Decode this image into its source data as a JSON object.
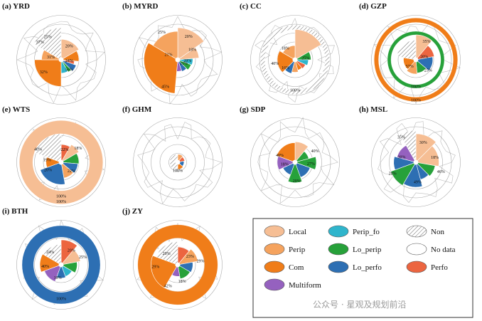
{
  "colors": {
    "Local": "#f6be94",
    "Perip": "#f5a35e",
    "Com": "#f07d19",
    "Perfo": "#ec6540",
    "Perip_fo": "#2fb5cc",
    "Lo_perip": "#27a13a",
    "Lo_perfo": "#2d6fb3",
    "Multiform": "#9561bf",
    "Non": "#ffffff",
    "No data": "#ffffff",
    "ring": "#aaaaaa",
    "map": "#bdbdbd"
  },
  "legend": {
    "items": [
      {
        "key": "Local",
        "label": "Local"
      },
      {
        "key": "Perip_fo",
        "label": "Perip_fo"
      },
      {
        "key": "Non",
        "label": "Non"
      },
      {
        "key": "Perip",
        "label": "Perip"
      },
      {
        "key": "Lo_perip",
        "label": "Lo_perip"
      },
      {
        "key": "No data",
        "label": "No data"
      },
      {
        "key": "Com",
        "label": "Com"
      },
      {
        "key": "Lo_perfo",
        "label": "Lo_perfo"
      },
      {
        "key": "Perfo",
        "label": "Perfo"
      },
      {
        "key": "Multiform",
        "label": "Multiform"
      }
    ]
  },
  "watermark": "公众号 · 星观及规划前沿",
  "chart_data": [
    {
      "title": "(a) YRD",
      "type": "radial-bar",
      "rings": 5,
      "sectors": [
        {
          "start": 0,
          "end": 60,
          "outer": 2.3,
          "cat": "Local"
        },
        {
          "start": 60,
          "end": 95,
          "outer": 2.0,
          "cat": "Com"
        },
        {
          "start": 95,
          "end": 110,
          "outer": 1.5,
          "cat": "Perfo"
        },
        {
          "start": 110,
          "end": 135,
          "outer": 1.8,
          "cat": "Lo_perfo"
        },
        {
          "start": 135,
          "end": 150,
          "outer": 1.6,
          "cat": "Lo_perip"
        },
        {
          "start": 150,
          "end": 180,
          "outer": 1.5,
          "cat": "Perip_fo"
        },
        {
          "start": 180,
          "end": 270,
          "outer": 3.0,
          "cat": "Com"
        },
        {
          "start": 270,
          "end": 300,
          "outer": 2.2,
          "cat": "Perip"
        },
        {
          "start": 300,
          "end": 360,
          "outer": 3.6,
          "cat": "Non"
        }
      ],
      "labels": [
        {
          "text": "20%",
          "angle": 30,
          "r": 1.8
        },
        {
          "text": "24%",
          "angle": 95,
          "r": 0.9
        },
        {
          "text": "56%",
          "angle": 140,
          "r": 1.4
        },
        {
          "text": "32%",
          "angle": 235,
          "r": 2.4
        },
        {
          "text": "31%",
          "angle": 285,
          "r": 1.2
        },
        {
          "text": "37%",
          "angle": 310,
          "r": 3.1
        },
        {
          "text": "25%",
          "angle": 330,
          "r": 3.0
        }
      ]
    },
    {
      "title": "(b) MYRD",
      "type": "radial-bar",
      "rings": 5,
      "sectors": [
        {
          "start": 0,
          "end": 55,
          "outer": 3.6,
          "cat": "Local"
        },
        {
          "start": 55,
          "end": 85,
          "outer": 2.4,
          "cat": "Local"
        },
        {
          "start": 85,
          "end": 110,
          "outer": 1.7,
          "cat": "Perip_fo"
        },
        {
          "start": 110,
          "end": 135,
          "outer": 1.6,
          "cat": "Lo_perip"
        },
        {
          "start": 135,
          "end": 160,
          "outer": 1.4,
          "cat": "Lo_perfo"
        },
        {
          "start": 160,
          "end": 185,
          "outer": 1.3,
          "cat": "Multiform"
        },
        {
          "start": 185,
          "end": 300,
          "outer": 3.8,
          "cat": "Com"
        },
        {
          "start": 300,
          "end": 360,
          "outer": 3.2,
          "cat": "Perip"
        }
      ],
      "labels": [
        {
          "text": "20%",
          "angle": 25,
          "r": 2.9
        },
        {
          "text": "18%",
          "angle": 55,
          "r": 2.0
        },
        {
          "text": "29%",
          "angle": 95,
          "r": 1.1
        },
        {
          "text": "11%",
          "angle": 120,
          "r": 0.8
        },
        {
          "text": "45%",
          "angle": 205,
          "r": 3.3
        },
        {
          "text": "21%",
          "angle": 300,
          "r": 1.2
        },
        {
          "text": "25%",
          "angle": 330,
          "r": 3.6
        }
      ]
    },
    {
      "title": "(c) CC",
      "type": "radial-bar",
      "rings": 5,
      "sectors": [
        {
          "start": 0,
          "end": 60,
          "outer": 3.4,
          "cat": "Local"
        },
        {
          "start": 60,
          "end": 90,
          "outer": 1.8,
          "cat": "Lo_perip"
        },
        {
          "start": 90,
          "end": 115,
          "outer": 1.5,
          "cat": "Perip_fo"
        },
        {
          "start": 115,
          "end": 140,
          "outer": 1.3,
          "cat": "Perfo"
        },
        {
          "start": 140,
          "end": 165,
          "outer": 1.2,
          "cat": "Com"
        },
        {
          "start": 165,
          "end": 195,
          "outer": 1.4,
          "cat": "Perip"
        },
        {
          "start": 195,
          "end": 225,
          "outer": 1.6,
          "cat": "Lo_perfo"
        },
        {
          "start": 225,
          "end": 300,
          "outer": 2.0,
          "cat": "Com"
        },
        {
          "start": 300,
          "end": 360,
          "outer": 1.6,
          "cat": "Perip"
        }
      ],
      "ring": {
        "cat": "Non",
        "inner": 3.4,
        "outer": 3.9,
        "start": 0,
        "end": 360
      },
      "labels": [
        {
          "text": "25%",
          "angle": 80,
          "r": 1.2
        },
        {
          "text": "100%",
          "angle": 180,
          "r": 3.4
        },
        {
          "text": "40%",
          "angle": 260,
          "r": 2.3
        },
        {
          "text": "16%",
          "angle": 230,
          "r": 1.4
        },
        {
          "text": "18%",
          "angle": 320,
          "r": 1.7
        }
      ]
    },
    {
      "title": "(d) GZP",
      "type": "radial-bar",
      "rings": 5,
      "sectors": [
        {
          "start": 0,
          "end": 40,
          "outer": 2.8,
          "cat": "Local"
        },
        {
          "start": 40,
          "end": 80,
          "outer": 2.1,
          "cat": "Perfo"
        },
        {
          "start": 80,
          "end": 130,
          "outer": 1.9,
          "cat": "Lo_perfo"
        },
        {
          "start": 130,
          "end": 175,
          "outer": 1.5,
          "cat": "Lo_perip"
        },
        {
          "start": 175,
          "end": 220,
          "outer": 1.6,
          "cat": "Perip"
        },
        {
          "start": 220,
          "end": 280,
          "outer": 1.4,
          "cat": "Com"
        },
        {
          "start": 280,
          "end": 360,
          "outer": 2.2,
          "cat": "Non"
        }
      ],
      "ring": {
        "cat": "Com",
        "inner": 4.2,
        "outer": 4.7,
        "start": 0,
        "end": 360
      },
      "ring2": {
        "cat": "Lo_perip",
        "inner": 2.8,
        "outer": 3.2,
        "start": 0,
        "end": 360
      },
      "labels": [
        {
          "text": "35%",
          "angle": 30,
          "r": 2.4
        },
        {
          "text": "20%",
          "angle": 70,
          "r": 1.0
        },
        {
          "text": "25%",
          "angle": 130,
          "r": 1.8
        },
        {
          "text": "57%",
          "angle": 225,
          "r": 1.0
        },
        {
          "text": "100%",
          "angle": 180,
          "r": 3.0
        },
        {
          "text": "100%",
          "angle": 180,
          "r": 4.5
        }
      ]
    },
    {
      "title": "(e) WTS",
      "type": "radial-bar",
      "rings": 5,
      "sectors": [
        {
          "start": 0,
          "end": 30,
          "outer": 2.0,
          "cat": "Perfo"
        },
        {
          "start": 30,
          "end": 60,
          "outer": 2.3,
          "cat": "Local"
        },
        {
          "start": 60,
          "end": 95,
          "outer": 2.0,
          "cat": "Lo_perip"
        },
        {
          "start": 95,
          "end": 130,
          "outer": 1.9,
          "cat": "Lo_perfo"
        },
        {
          "start": 130,
          "end": 170,
          "outer": 1.8,
          "cat": "Perip"
        },
        {
          "start": 170,
          "end": 250,
          "outer": 2.5,
          "cat": "Lo_perfo"
        },
        {
          "start": 250,
          "end": 290,
          "outer": 1.7,
          "cat": "Com"
        },
        {
          "start": 290,
          "end": 360,
          "outer": 3.2,
          "cat": "Non"
        }
      ],
      "ring": {
        "cat": "Local",
        "inner": 3.2,
        "outer": 4.7,
        "start": 0,
        "end": 360
      },
      "labels": [
        {
          "text": "22%",
          "angle": 15,
          "r": 1.5
        },
        {
          "text": "18%",
          "angle": 50,
          "r": 2.5
        },
        {
          "text": "22%",
          "angle": 130,
          "r": 1.5
        },
        {
          "text": "100%",
          "angle": 180,
          "r": 3.8
        },
        {
          "text": "100%",
          "angle": 180,
          "r": 4.4
        },
        {
          "text": "20%",
          "angle": 240,
          "r": 1.7
        },
        {
          "text": "40%",
          "angle": 300,
          "r": 3.0
        },
        {
          "text": "19%",
          "angle": 280,
          "r": 1.6
        }
      ]
    },
    {
      "title": "(f) GHM",
      "type": "radial-bar",
      "rings": 5,
      "sectors": [
        {
          "start": 0,
          "end": 40,
          "outer": 0.9,
          "cat": "Perip"
        },
        {
          "start": 40,
          "end": 80,
          "outer": 0.8,
          "cat": "Perfo"
        },
        {
          "start": 80,
          "end": 130,
          "outer": 0.7,
          "cat": "Lo_perfo"
        },
        {
          "start": 130,
          "end": 180,
          "outer": 0.8,
          "cat": "Com"
        },
        {
          "start": 180,
          "end": 360,
          "outer": 0.9,
          "cat": "Non"
        }
      ],
      "labels": [
        {
          "text": "100%",
          "angle": 180,
          "r": 0.9
        }
      ]
    },
    {
      "title": "(g) SDP",
      "type": "radial-bar",
      "rings": 5,
      "sectors": [
        {
          "start": 0,
          "end": 40,
          "outer": 2.3,
          "cat": "Local"
        },
        {
          "start": 40,
          "end": 75,
          "outer": 1.6,
          "cat": "Lo_perip"
        },
        {
          "start": 75,
          "end": 110,
          "outer": 2.4,
          "cat": "Lo_perip"
        },
        {
          "start": 110,
          "end": 160,
          "outer": 1.8,
          "cat": "Lo_perfo"
        },
        {
          "start": 160,
          "end": 200,
          "outer": 2.3,
          "cat": "Lo_perip"
        },
        {
          "start": 200,
          "end": 245,
          "outer": 1.5,
          "cat": "Lo_perfo"
        },
        {
          "start": 245,
          "end": 290,
          "outer": 2.0,
          "cat": "Multiform"
        },
        {
          "start": 290,
          "end": 360,
          "outer": 2.2,
          "cat": "Com"
        }
      ],
      "labels": [
        {
          "text": "40%",
          "angle": 60,
          "r": 2.6
        },
        {
          "text": "27%",
          "angle": 95,
          "r": 1.8
        },
        {
          "text": "20%",
          "angle": 175,
          "r": 2.1
        },
        {
          "text": "40%",
          "angle": 295,
          "r": 1.9
        },
        {
          "text": "18%",
          "angle": 260,
          "r": 1.2
        }
      ]
    },
    {
      "title": "(h) MSL",
      "type": "radial-bar",
      "rings": 5,
      "sectors": [
        {
          "start": 0,
          "end": 45,
          "outer": 3.2,
          "cat": "Local"
        },
        {
          "start": 45,
          "end": 100,
          "outer": 2.6,
          "cat": "Local"
        },
        {
          "start": 100,
          "end": 135,
          "outer": 2.2,
          "cat": "Lo_perip"
        },
        {
          "start": 135,
          "end": 165,
          "outer": 2.0,
          "cat": "Lo_perfo"
        },
        {
          "start": 165,
          "end": 210,
          "outer": 2.8,
          "cat": "Lo_perfo"
        },
        {
          "start": 210,
          "end": 250,
          "outer": 3.0,
          "cat": "Lo_perip"
        },
        {
          "start": 250,
          "end": 285,
          "outer": 2.5,
          "cat": "Lo_perfo"
        },
        {
          "start": 285,
          "end": 330,
          "outer": 2.2,
          "cat": "Multiform"
        },
        {
          "start": 330,
          "end": 360,
          "outer": 3.6,
          "cat": "Non"
        }
      ],
      "labels": [
        {
          "text": "30%",
          "angle": 20,
          "r": 2.4
        },
        {
          "text": "18%",
          "angle": 75,
          "r": 2.2
        },
        {
          "text": "46%",
          "angle": 110,
          "r": 3.0
        },
        {
          "text": "49%",
          "angle": 175,
          "r": 2.2
        },
        {
          "text": "20%",
          "angle": 245,
          "r": 2.9
        },
        {
          "text": "30%",
          "angle": 290,
          "r": 1.7
        },
        {
          "text": "35%",
          "angle": 330,
          "r": 3.3
        }
      ]
    },
    {
      "title": "(i) BTH",
      "type": "radial-bar",
      "rings": 5,
      "sectors": [
        {
          "start": 0,
          "end": 40,
          "outer": 2.8,
          "cat": "Perfo"
        },
        {
          "start": 40,
          "end": 80,
          "outer": 2.2,
          "cat": "Local"
        },
        {
          "start": 80,
          "end": 120,
          "outer": 1.8,
          "cat": "Lo_perip"
        },
        {
          "start": 120,
          "end": 160,
          "outer": 1.4,
          "cat": "Perip_fo"
        },
        {
          "start": 160,
          "end": 200,
          "outer": 1.5,
          "cat": "Lo_perfo"
        },
        {
          "start": 200,
          "end": 250,
          "outer": 2.0,
          "cat": "Multiform"
        },
        {
          "start": 250,
          "end": 300,
          "outer": 2.4,
          "cat": "Com"
        },
        {
          "start": 300,
          "end": 360,
          "outer": 2.3,
          "cat": "Non"
        }
      ],
      "ring": {
        "cat": "Lo_perfo",
        "inner": 3.1,
        "outer": 4.4,
        "start": 0,
        "end": 360
      },
      "labels": [
        {
          "text": "20%",
          "angle": 35,
          "r": 2.0
        },
        {
          "text": "25%",
          "angle": 70,
          "r": 2.6
        },
        {
          "text": "18%",
          "angle": 195,
          "r": 1.5
        },
        {
          "text": "100%",
          "angle": 180,
          "r": 3.8
        },
        {
          "text": "40%",
          "angle": 265,
          "r": 1.8
        },
        {
          "text": "24%",
          "angle": 320,
          "r": 1.9
        }
      ]
    },
    {
      "title": "(j) ZY",
      "type": "radial-bar",
      "rings": 5,
      "sectors": [
        {
          "start": 0,
          "end": 40,
          "outer": 2.0,
          "cat": "Perfo"
        },
        {
          "start": 40,
          "end": 80,
          "outer": 2.3,
          "cat": "Perip"
        },
        {
          "start": 80,
          "end": 120,
          "outer": 1.7,
          "cat": "Lo_perfo"
        },
        {
          "start": 120,
          "end": 170,
          "outer": 1.6,
          "cat": "Lo_perip"
        },
        {
          "start": 170,
          "end": 210,
          "outer": 1.3,
          "cat": "Multiform"
        },
        {
          "start": 210,
          "end": 290,
          "outer": 3.0,
          "cat": "Com"
        },
        {
          "start": 290,
          "end": 360,
          "outer": 2.6,
          "cat": "Non"
        }
      ],
      "ring": {
        "cat": "Com",
        "inner": 3.0,
        "outer": 4.5,
        "start": 0,
        "end": 360
      },
      "labels": [
        {
          "text": "23%",
          "angle": 55,
          "r": 1.7
        },
        {
          "text": "29%",
          "angle": 80,
          "r": 2.6
        },
        {
          "text": "18%",
          "angle": 165,
          "r": 1.9
        },
        {
          "text": "42%",
          "angle": 205,
          "r": 2.6
        },
        {
          "text": "29%",
          "angle": 265,
          "r": 2.5
        },
        {
          "text": "20%",
          "angle": 315,
          "r": 1.8
        }
      ]
    }
  ]
}
